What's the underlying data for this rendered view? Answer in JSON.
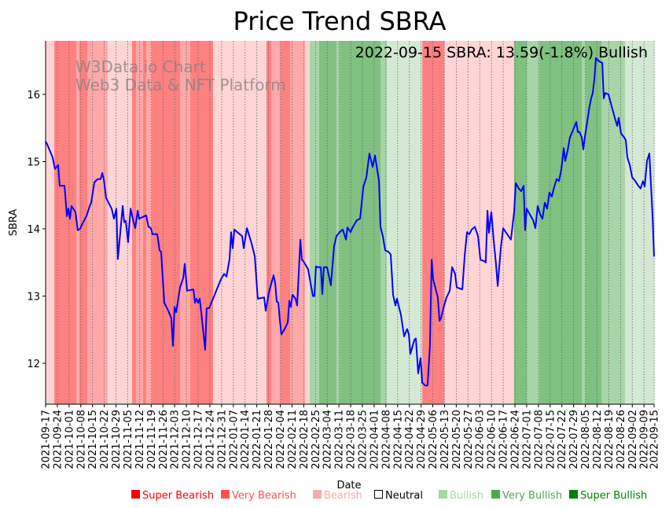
{
  "chart_data": {
    "type": "line",
    "title": "Price Trend SBRA",
    "xlabel": "Date",
    "ylabel": "SBRA",
    "annotation": "2022-09-15 SBRA: 13.59(-1.8%) Bullish",
    "watermark": [
      "W3Data.io Chart",
      "Web3 Data & NFT Platform"
    ],
    "x_unit": "days since 2021-09-17",
    "xlim": [
      0,
      363
    ],
    "ylim": [
      11.4,
      16.8
    ],
    "yticks": [
      12,
      13,
      14,
      15,
      16
    ],
    "xtick_labels": [
      "2021-09-17",
      "2021-09-24",
      "2021-10-01",
      "2021-10-08",
      "2021-10-15",
      "2021-10-22",
      "2021-10-29",
      "2021-11-05",
      "2021-11-12",
      "2021-11-19",
      "2021-11-26",
      "2021-12-03",
      "2021-12-10",
      "2021-12-17",
      "2021-12-24",
      "2021-12-31",
      "2022-01-07",
      "2022-01-14",
      "2022-01-21",
      "2022-01-28",
      "2022-02-04",
      "2022-02-11",
      "2022-02-18",
      "2022-02-25",
      "2022-03-04",
      "2022-03-11",
      "2022-03-18",
      "2022-03-25",
      "2022-04-01",
      "2022-04-08",
      "2022-04-15",
      "2022-04-22",
      "2022-04-29",
      "2022-05-06",
      "2022-05-13",
      "2022-05-20",
      "2022-05-27",
      "2022-06-03",
      "2022-06-10",
      "2022-06-17",
      "2022-06-24",
      "2022-07-01",
      "2022-07-08",
      "2022-07-15",
      "2022-07-22",
      "2022-07-29",
      "2022-08-05",
      "2022-08-12",
      "2022-08-19",
      "2022-08-26",
      "2022-09-02",
      "2022-09-09",
      "2022-09-15"
    ],
    "xtick_days": [
      0,
      7,
      14,
      21,
      28,
      35,
      42,
      49,
      56,
      63,
      70,
      77,
      84,
      91,
      98,
      105,
      112,
      119,
      126,
      133,
      140,
      147,
      154,
      161,
      168,
      175,
      182,
      189,
      196,
      203,
      210,
      217,
      224,
      231,
      238,
      245,
      252,
      259,
      266,
      273,
      280,
      287,
      294,
      301,
      308,
      315,
      322,
      329,
      336,
      343,
      350,
      357,
      363
    ],
    "grid": "vertical dotted",
    "series": [
      {
        "name": "SBRA",
        "color": "#0000ff",
        "x": [
          0,
          0.9,
          4.2,
          5.6,
          7.5,
          8.4,
          11.3,
          12.7,
          13.6,
          14.5,
          15.5,
          17.8,
          19.2,
          20.6,
          22,
          24.4,
          26.3,
          27.2,
          29.1,
          31,
          32.8,
          33.8,
          34.7,
          36.1,
          39.4,
          40.8,
          42.2,
          43.1,
          46,
          46.9,
          47.8,
          49.2,
          50.7,
          52.5,
          53.5,
          54.9,
          55.8,
          60,
          61.4,
          62.8,
          63.8,
          66.6,
          68,
          68.9,
          70.8,
          73.2,
          75,
          76,
          76.9,
          77.9,
          80.2,
          82.1,
          83,
          84.4,
          88.2,
          89.1,
          90,
          91,
          91.9,
          92.9,
          95.2,
          96.1,
          97.6,
          101.8,
          104.6,
          106.5,
          107.9,
          109.7,
          110.7,
          111.6,
          112.6,
          114.4,
          117.3,
          118.2,
          120.1,
          122.9,
          124.8,
          126.6,
          130.4,
          131.3,
          133.2,
          136,
          137,
          137.9,
          138.8,
          139.8,
          140.7,
          142.6,
          144.5,
          145.4,
          146.3,
          147.3,
          149.1,
          150.1,
          152,
          152.9,
          153.8,
          156.6,
          158.5,
          159.5,
          160.4,
          161.3,
          162.3,
          164.2,
          165.1,
          166,
          167.9,
          170.2,
          172.1,
          173.5,
          175.4,
          177.3,
          179.2,
          180.1,
          182,
          182.9,
          185.7,
          187.6,
          188.5,
          189.5,
          191.4,
          193.2,
          195.1,
          196.5,
          198.9,
          199.8,
          201.2,
          202.6,
          204.5,
          205.9,
          207.3,
          208.7,
          209.6,
          212,
          213.9,
          215.7,
          216.7,
          217.6,
          220,
          220.9,
          222.3,
          223.7,
          224.7,
          226.5,
          227.9,
          229.3,
          230.3,
          231.2,
          234,
          235,
          235.9,
          237.3,
          239.2,
          241.1,
          242.5,
          244.3,
          245.3,
          248.6,
          250,
          251.4,
          252.8,
          254.2,
          256.1,
          258,
          259.4,
          261.7,
          262.6,
          263.6,
          264.5,
          265.9,
          267.3,
          268.7,
          269.7,
          271.6,
          273,
          274.8,
          277.6,
          279.5,
          280.5,
          282.3,
          283.7,
          285.2,
          286.1,
          287,
          289.4,
          290.8,
          292.2,
          293.6,
          295,
          296.4,
          297.8,
          299.2,
          300.6,
          302,
          303.4,
          304.9,
          306.3,
          307.7,
          309.1,
          310,
          311.4,
          312.8,
          314.7,
          316.6,
          317.5,
          318.5,
          319.9,
          320.8,
          321.7,
          323.6,
          324.5,
          325.5,
          326.4,
          327.4,
          328.3,
          330.2,
          332.1,
          333,
          333.9,
          335.8,
          337.7,
          339.6,
          341,
          341.9,
          343.3,
          345.2,
          346.1,
          347.1,
          348.5,
          349.9,
          351.8,
          353.6,
          355,
          356.4,
          357.4,
          358.8,
          360.2,
          362.1,
          363
        ],
        "y": [
          15.3,
          15.26,
          15.06,
          14.89,
          14.95,
          14.64,
          14.64,
          14.19,
          14.3,
          14.15,
          14.34,
          14.25,
          13.98,
          14.0,
          14.08,
          14.19,
          14.34,
          14.39,
          14.69,
          14.74,
          14.74,
          14.83,
          14.74,
          14.46,
          14.3,
          14.15,
          14.3,
          13.55,
          14.34,
          14.1,
          14.12,
          13.8,
          14.3,
          14.1,
          14.01,
          14.27,
          14.15,
          14.2,
          14.03,
          14.01,
          13.92,
          13.92,
          13.68,
          13.66,
          12.9,
          12.78,
          12.67,
          12.26,
          12.84,
          12.76,
          13.13,
          13.27,
          13.48,
          13.08,
          13.1,
          12.9,
          12.96,
          12.9,
          12.96,
          12.75,
          12.2,
          12.82,
          12.82,
          13.08,
          13.25,
          13.33,
          13.29,
          13.54,
          13.95,
          13.71,
          13.99,
          13.95,
          13.89,
          13.71,
          14.01,
          13.78,
          13.59,
          12.96,
          12.98,
          12.78,
          13.05,
          13.31,
          13.19,
          12.92,
          12.9,
          12.63,
          12.43,
          12.51,
          12.61,
          12.93,
          12.84,
          13.02,
          12.96,
          12.86,
          13.84,
          13.54,
          13.52,
          13.4,
          13.13,
          13.0,
          13.0,
          13.44,
          13.43,
          13.43,
          13.03,
          13.43,
          13.43,
          13.16,
          13.74,
          13.89,
          13.95,
          13.99,
          13.84,
          14.02,
          13.95,
          14.01,
          14.13,
          14.15,
          14.36,
          14.62,
          14.77,
          15.12,
          14.92,
          15.09,
          14.71,
          14.03,
          13.89,
          13.68,
          13.66,
          13.62,
          13.02,
          12.86,
          12.96,
          12.72,
          12.4,
          12.51,
          12.43,
          12.14,
          12.35,
          12.37,
          11.85,
          12.08,
          11.71,
          11.67,
          11.67,
          12.26,
          13.54,
          13.25,
          12.98,
          12.63,
          12.67,
          12.82,
          12.98,
          13.08,
          13.43,
          13.33,
          13.13,
          13.1,
          13.6,
          13.95,
          13.92,
          13.99,
          14.03,
          13.89,
          13.54,
          13.52,
          13.5,
          14.27,
          13.94,
          14.25,
          13.84,
          13.48,
          13.15,
          13.72,
          14.01,
          13.94,
          13.84,
          14.25,
          14.68,
          14.6,
          14.56,
          14.64,
          13.98,
          14.3,
          14.19,
          14.13,
          14.01,
          14.34,
          14.22,
          14.15,
          14.39,
          14.3,
          14.54,
          14.48,
          14.62,
          14.74,
          14.71,
          14.89,
          15.2,
          15.01,
          15.16,
          15.36,
          15.47,
          15.59,
          15.44,
          15.44,
          15.36,
          15.18,
          15.36,
          15.67,
          15.82,
          15.94,
          16.02,
          16.23,
          16.54,
          16.49,
          16.47,
          15.94,
          16.02,
          16.0,
          15.82,
          15.65,
          15.53,
          15.65,
          15.42,
          15.36,
          15.32,
          15.06,
          14.95,
          14.77,
          14.71,
          14.64,
          14.6,
          14.71,
          14.63,
          15.01,
          15.12,
          14.19,
          13.59
        ]
      }
    ],
    "regimes": [
      {
        "start": 0,
        "end": 5.2,
        "level": "bearish"
      },
      {
        "start": 5.2,
        "end": 18.3,
        "level": "super_bearish"
      },
      {
        "start": 18.3,
        "end": 20.2,
        "level": "very_bearish"
      },
      {
        "start": 20.2,
        "end": 24.9,
        "level": "super_bearish"
      },
      {
        "start": 24.9,
        "end": 37,
        "level": "very_bearish"
      },
      {
        "start": 37,
        "end": 51.6,
        "level": "bearish"
      },
      {
        "start": 51.6,
        "end": 53.9,
        "level": "super_bearish"
      },
      {
        "start": 53.9,
        "end": 58.2,
        "level": "very_bearish"
      },
      {
        "start": 58.2,
        "end": 60,
        "level": "super_bearish"
      },
      {
        "start": 60,
        "end": 63.3,
        "level": "very_bearish"
      },
      {
        "start": 63.3,
        "end": 80.2,
        "level": "super_bearish"
      },
      {
        "start": 80.2,
        "end": 86.3,
        "level": "very_bearish"
      },
      {
        "start": 86.3,
        "end": 99.9,
        "level": "super_bearish"
      },
      {
        "start": 99.9,
        "end": 131.8,
        "level": "bearish"
      },
      {
        "start": 131.8,
        "end": 134.6,
        "level": "super_bearish"
      },
      {
        "start": 134.6,
        "end": 140.2,
        "level": "very_bearish"
      },
      {
        "start": 140.2,
        "end": 145.9,
        "level": "super_bearish"
      },
      {
        "start": 145.9,
        "end": 154.8,
        "level": "very_bearish"
      },
      {
        "start": 154.8,
        "end": 157.6,
        "level": "bearish"
      },
      {
        "start": 157.6,
        "end": 163.2,
        "level": "very_bullish"
      },
      {
        "start": 163.2,
        "end": 173.5,
        "level": "super_bullish"
      },
      {
        "start": 173.5,
        "end": 175.4,
        "level": "very_bullish"
      },
      {
        "start": 175.4,
        "end": 199.8,
        "level": "super_bullish"
      },
      {
        "start": 199.8,
        "end": 203.5,
        "level": "very_bullish"
      },
      {
        "start": 203.5,
        "end": 224.7,
        "level": "bullish"
      },
      {
        "start": 224.7,
        "end": 237.8,
        "level": "super_bearish"
      },
      {
        "start": 237.8,
        "end": 279.5,
        "level": "bearish"
      },
      {
        "start": 279.5,
        "end": 287,
        "level": "super_bullish"
      },
      {
        "start": 287,
        "end": 294.5,
        "level": "very_bullish"
      },
      {
        "start": 294.5,
        "end": 319.9,
        "level": "super_bullish"
      },
      {
        "start": 319.9,
        "end": 322.2,
        "level": "very_bullish"
      },
      {
        "start": 322.2,
        "end": 331.6,
        "level": "super_bullish"
      },
      {
        "start": 331.6,
        "end": 345.7,
        "level": "very_bullish"
      },
      {
        "start": 345.7,
        "end": 363,
        "level": "bullish"
      }
    ],
    "regime_colors": {
      "super_bearish": "#ff8080",
      "very_bearish": "#ffa8a8",
      "bearish": "#ffd4d4",
      "bullish": "#d4e9d4",
      "very_bullish": "#a8d5a8",
      "super_bullish": "#80c080"
    },
    "legend": [
      {
        "label": "Super Bearish",
        "color": "#ff0000"
      },
      {
        "label": "Very Bearish",
        "color": "#ff5050"
      },
      {
        "label": "Bearish",
        "color": "#ffa8a8"
      },
      {
        "label": "Neutral",
        "color": "#000000",
        "hollow": true
      },
      {
        "label": "Bullish",
        "color": "#a8d5a8"
      },
      {
        "label": "Very Bullish",
        "color": "#4fa84f"
      },
      {
        "label": "Super Bullish",
        "color": "#008000"
      }
    ],
    "legend_placement": "bottom"
  }
}
